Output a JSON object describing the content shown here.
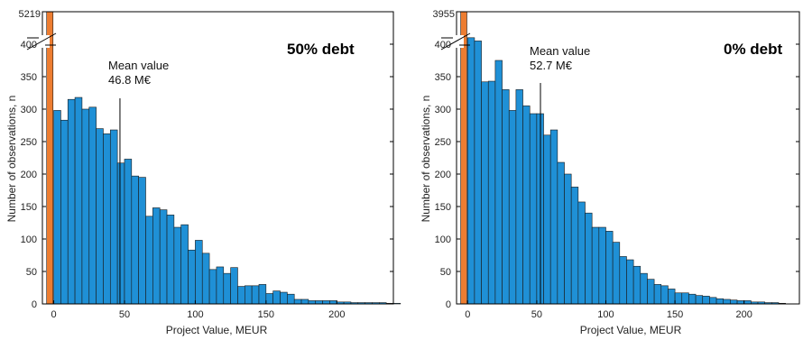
{
  "chart_data": [
    {
      "type": "bar",
      "title": "50% debt",
      "xlabel": "Project Value, MEUR",
      "ylabel": "Number of observations, n",
      "xlim": [
        -8,
        240
      ],
      "ylim": [
        0,
        450
      ],
      "xticks": [
        "0",
        "50",
        "100",
        "150",
        "200"
      ],
      "yticks": [
        "0",
        "50",
        "100",
        "150",
        "200",
        "250",
        "300",
        "350",
        "400"
      ],
      "break_value_label": "5219",
      "mean": {
        "value": 46.8,
        "label_line1": "Mean value",
        "label_line2": "46.8 M€"
      },
      "special_bar": {
        "x_start": -5,
        "x_end": -0.5,
        "value": 5219,
        "color": "#ed7d31"
      },
      "bin_start": 0,
      "bin_width": 5,
      "bar_color": "#1f90d6",
      "values": [
        298,
        283,
        315,
        318,
        300,
        303,
        270,
        262,
        268,
        217,
        223,
        197,
        195,
        135,
        148,
        145,
        137,
        118,
        122,
        83,
        98,
        78,
        53,
        57,
        47,
        56,
        27,
        28,
        28,
        30,
        16,
        20,
        18,
        15,
        7,
        7,
        5,
        5,
        5,
        5,
        3,
        3,
        2,
        2,
        2,
        2,
        2,
        1,
        1
      ]
    },
    {
      "type": "bar",
      "title": "0% debt",
      "xlabel": "Project Value, MEUR",
      "ylabel": "Number of observations, n",
      "xlim": [
        -8,
        240
      ],
      "ylim": [
        0,
        450
      ],
      "xticks": [
        "0",
        "50",
        "100",
        "150",
        "200"
      ],
      "yticks": [
        "0",
        "50",
        "100",
        "150",
        "200",
        "250",
        "300",
        "350",
        "400"
      ],
      "break_value_label": "3955",
      "mean": {
        "value": 52.7,
        "label_line1": "Mean value",
        "label_line2": "52.7 M€"
      },
      "special_bar": {
        "x_start": -5,
        "x_end": -0.5,
        "value": 3955,
        "color": "#ed7d31"
      },
      "bin_start": 0,
      "bin_width": 5,
      "bar_color": "#1f90d6",
      "values": [
        410,
        405,
        342,
        343,
        375,
        330,
        298,
        330,
        305,
        293,
        293,
        260,
        268,
        218,
        200,
        180,
        157,
        140,
        118,
        118,
        112,
        95,
        73,
        68,
        58,
        47,
        38,
        30,
        28,
        23,
        17,
        17,
        15,
        13,
        12,
        10,
        8,
        7,
        6,
        5,
        5,
        3,
        3,
        2,
        2,
        1
      ]
    }
  ]
}
